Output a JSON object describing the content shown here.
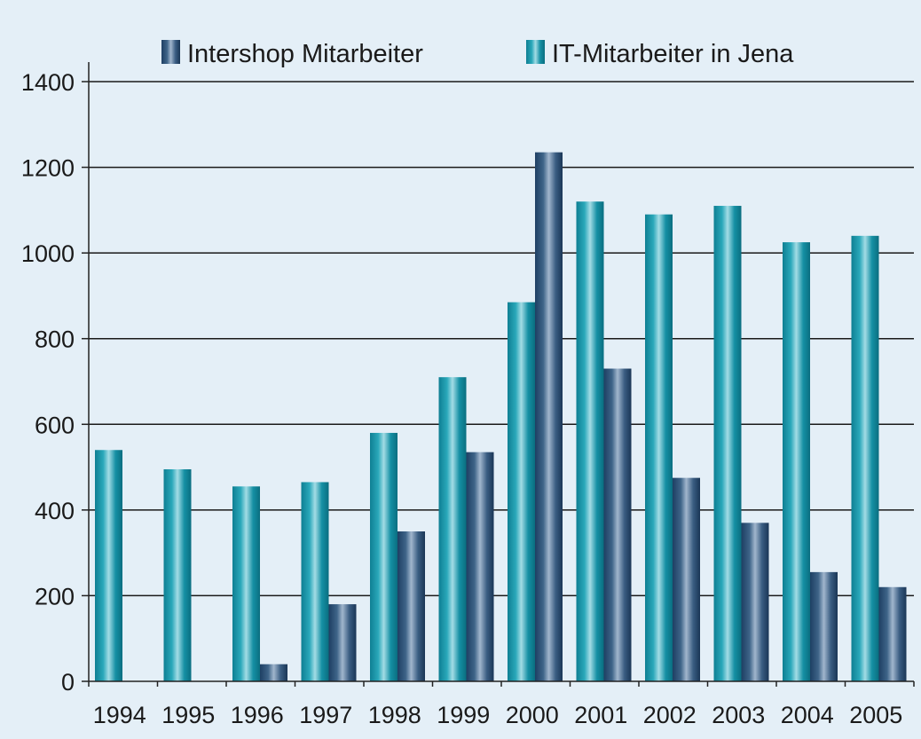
{
  "colors": {
    "background": "#e4eff7",
    "axis": "#222222",
    "gridline": "#1a1a1a",
    "it_series": [
      "#0e7f93",
      "#2aa8ba",
      "#a3dce5",
      "#1590a4",
      "#0a6e80"
    ],
    "intershop_series": [
      "#1e3f63",
      "#3e6488",
      "#a1b6cd",
      "#3a5d82",
      "#1a3656"
    ]
  },
  "chart_data": {
    "type": "bar",
    "title": "",
    "xlabel": "",
    "ylabel": "",
    "ylim": [
      0,
      1400
    ],
    "yticks": [
      "0",
      "200",
      "400",
      "600",
      "800",
      "1000",
      "1200",
      "1400"
    ],
    "grid": true,
    "legend_position": "top",
    "categories": [
      "1994",
      "1995",
      "1996",
      "1997",
      "1998",
      "1999",
      "2000",
      "2001",
      "2002",
      "2003",
      "2004",
      "2005"
    ],
    "series": [
      {
        "name": "IT-Mitarbeiter in Jena",
        "color_key": "it_series",
        "values": [
          540,
          495,
          455,
          465,
          580,
          710,
          885,
          1120,
          1090,
          1110,
          1025,
          1040
        ]
      },
      {
        "name": "Intershop Mitarbeiter",
        "color_key": "intershop_series",
        "values": [
          0,
          0,
          40,
          180,
          350,
          535,
          1235,
          730,
          475,
          370,
          255,
          220
        ]
      }
    ],
    "legend_order": [
      "Intershop Mitarbeiter",
      "IT-Mitarbeiter in Jena"
    ]
  }
}
